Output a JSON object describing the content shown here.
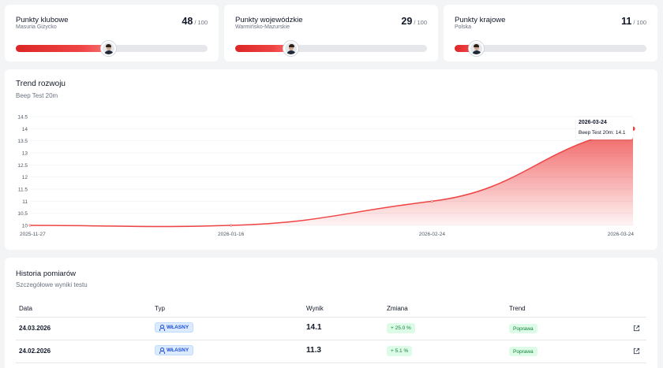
{
  "score_cards": [
    {
      "title": "Punkty klubowe",
      "subtitle": "Masuria Giżycko",
      "value": "48",
      "max": "/ 100",
      "progress": 0.48
    },
    {
      "title": "Punkty wojewódzkie",
      "subtitle": "Warmińsko-Mazurskie",
      "value": "29",
      "max": "/ 100",
      "progress": 0.29
    },
    {
      "title": "Punkty krajowe",
      "subtitle": "Polska",
      "value": "11",
      "max": "/ 100",
      "progress": 0.11
    }
  ],
  "trend": {
    "title": "Trend rozwoju",
    "subtitle": "Beep Test 20m",
    "tooltip": {
      "date": "2026-03-24",
      "label": "Beep Test 20m: 14.1"
    }
  },
  "chart_data": {
    "type": "area",
    "x": [
      "2025-11-27",
      "2026-01-16",
      "2026-02-24",
      "2026-03-24"
    ],
    "series": [
      {
        "values": [
          10,
          10,
          11,
          14
        ]
      }
    ],
    "yticks": [
      "10",
      "10.5",
      "11",
      "11.5",
      "12",
      "12.5",
      "13",
      "13.5",
      "14",
      "14.5"
    ],
    "ylim": [
      10,
      14.5
    ],
    "grid": true,
    "color": "#ef4444"
  },
  "history": {
    "title": "Historia pomiarów",
    "subtitle": "Szczegółowe wyniki testu",
    "columns": [
      "Data",
      "Typ",
      "Wynik",
      "Zmiana",
      "Trend"
    ],
    "rows": [
      {
        "date": "24.03.2026",
        "type": "WŁASNY",
        "result": "14.1",
        "change": "+ 25.0 %",
        "trend": "Poprawa",
        "action_icon": "external-link-icon"
      },
      {
        "date": "24.02.2026",
        "type": "WŁASNY",
        "result": "11.3",
        "change": "+ 5.1 %",
        "trend": "Poprawa",
        "action_icon": "external-link-icon"
      }
    ]
  },
  "colors": {
    "accent": "#ef4444",
    "positive": "#15803d",
    "badge_blue": "#1d4ed8"
  }
}
